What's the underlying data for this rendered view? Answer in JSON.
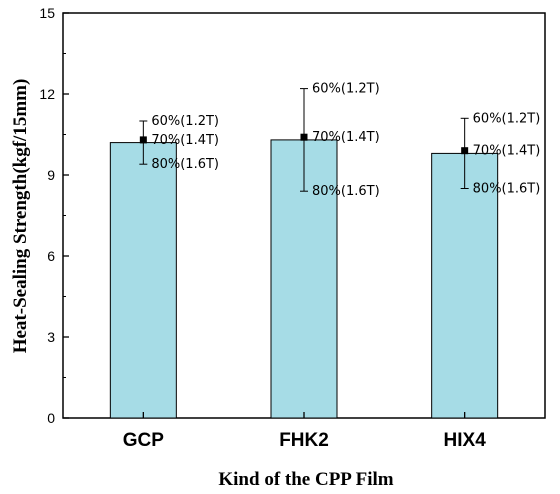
{
  "chart_data": {
    "type": "bar",
    "title": "",
    "xlabel": "Kind of the CPP Film",
    "ylabel": "Heat-Sealing Strength(kgf/15mm)",
    "categories": [
      "GCP",
      "FHK2",
      "HIX4"
    ],
    "values": [
      10.2,
      10.3,
      9.8
    ],
    "ylim": [
      0,
      15
    ],
    "yticks": [
      0,
      3,
      6,
      9,
      12,
      15
    ],
    "ytick_labels": [
      "0",
      "3",
      "6",
      "9",
      "12",
      "15"
    ],
    "grid": false,
    "bar_color": "#a6dce6",
    "error_bars": [
      {
        "category": "GCP",
        "points": [
          {
            "label": "60%(1.2T)",
            "value": 11.0
          },
          {
            "label": "70%(1.4T)",
            "value": 10.3
          },
          {
            "label": "80%(1.6T)",
            "value": 9.4
          }
        ]
      },
      {
        "category": "FHK2",
        "points": [
          {
            "label": "60%(1.2T)",
            "value": 12.2
          },
          {
            "label": "70%(1.4T)",
            "value": 10.4
          },
          {
            "label": "80%(1.6T)",
            "value": 8.4
          }
        ]
      },
      {
        "category": "HIX4",
        "points": [
          {
            "label": "60%(1.2T)",
            "value": 11.1
          },
          {
            "label": "70%(1.4T)",
            "value": 9.9
          },
          {
            "label": "80%(1.6T)",
            "value": 8.5
          }
        ]
      }
    ]
  }
}
